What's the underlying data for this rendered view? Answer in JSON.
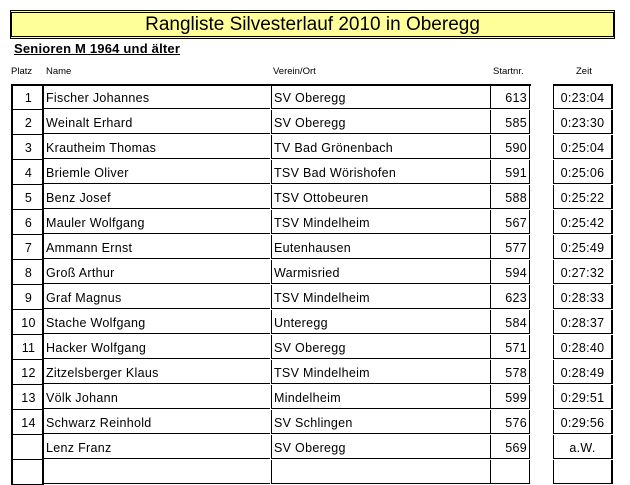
{
  "title": "Rangliste Silvesterlauf 2010 in Oberegg",
  "category": "Senioren M 1964 und älter",
  "headers": {
    "platz": "Platz",
    "name": "Name",
    "verein": "Verein/Ort",
    "startnr": "Startnr.",
    "zeit": "Zeit"
  },
  "colors": {
    "title_background": "#ffff99"
  },
  "rows": [
    {
      "platz": "1",
      "name": "Fischer Johannes",
      "verein": "SV Oberegg",
      "startnr": "613",
      "zeit": "0:23:04"
    },
    {
      "platz": "2",
      "name": "Weinalt Erhard",
      "verein": "SV Oberegg",
      "startnr": "585",
      "zeit": "0:23:30"
    },
    {
      "platz": "3",
      "name": "Krautheim Thomas",
      "verein": "TV Bad Grönenbach",
      "startnr": "590",
      "zeit": "0:25:04"
    },
    {
      "platz": "4",
      "name": "Briemle Oliver",
      "verein": "TSV Bad Wörishofen",
      "startnr": "591",
      "zeit": "0:25:06"
    },
    {
      "platz": "5",
      "name": "Benz Josef",
      "verein": "TSV Ottobeuren",
      "startnr": "588",
      "zeit": "0:25:22"
    },
    {
      "platz": "6",
      "name": "Mauler Wolfgang",
      "verein": "TSV Mindelheim",
      "startnr": "567",
      "zeit": "0:25:42"
    },
    {
      "platz": "7",
      "name": "Ammann Ernst",
      "verein": "Eutenhausen",
      "startnr": "577",
      "zeit": "0:25:49"
    },
    {
      "platz": "8",
      "name": "Groß Arthur",
      "verein": "Warmisried",
      "startnr": "594",
      "zeit": "0:27:32"
    },
    {
      "platz": "9",
      "name": "Graf Magnus",
      "verein": "TSV Mindelheim",
      "startnr": "623",
      "zeit": "0:28:33"
    },
    {
      "platz": "10",
      "name": "Stache Wolfgang",
      "verein": "Unteregg",
      "startnr": "584",
      "zeit": "0:28:37"
    },
    {
      "platz": "11",
      "name": "Hacker Wolfgang",
      "verein": "SV Oberegg",
      "startnr": "571",
      "zeit": "0:28:40"
    },
    {
      "platz": "12",
      "name": "Zitzelsberger Klaus",
      "verein": "TSV Mindelheim",
      "startnr": "578",
      "zeit": "0:28:49"
    },
    {
      "platz": "13",
      "name": "Völk Johann",
      "verein": "Mindelheim",
      "startnr": "599",
      "zeit": "0:29:51"
    },
    {
      "platz": "14",
      "name": "Schwarz Reinhold",
      "verein": "SV Schlingen",
      "startnr": "576",
      "zeit": "0:29:56"
    },
    {
      "platz": "",
      "name": "Lenz Franz",
      "verein": "SV Oberegg",
      "startnr": "569",
      "zeit": "a.W."
    },
    {
      "platz": "",
      "name": "",
      "verein": "",
      "startnr": "",
      "zeit": ""
    }
  ]
}
